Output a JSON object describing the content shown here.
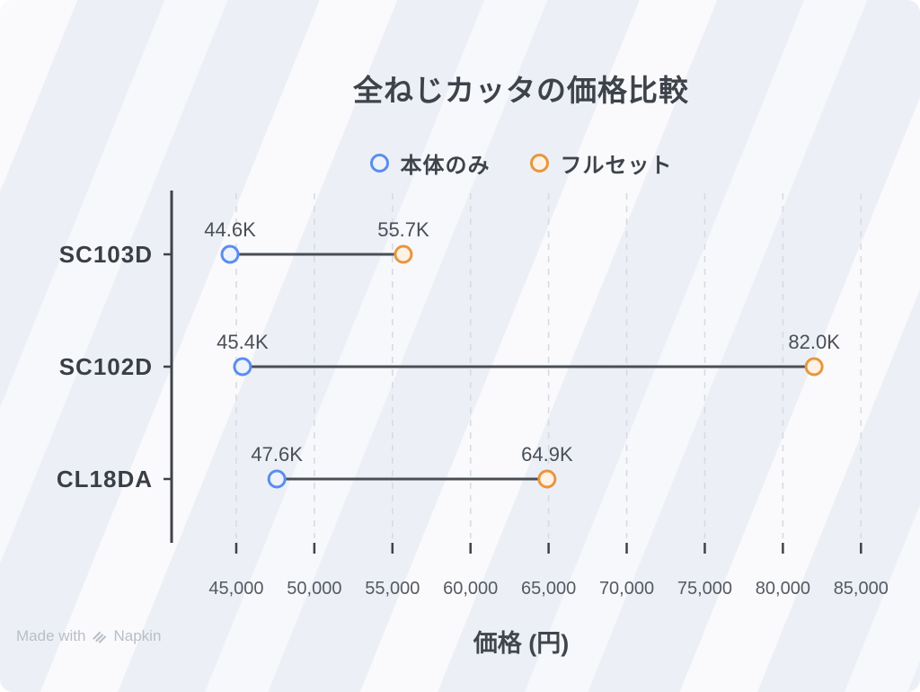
{
  "title": "全ねじカッタの価格比較",
  "xlabel": "価格 (円)",
  "legend": [
    {
      "label": "本体のみ",
      "color": "#5b8def",
      "fill": "#edf2fc"
    },
    {
      "label": "フルセット",
      "color": "#e8963f",
      "fill": "#fdf2e4"
    }
  ],
  "watermark": {
    "prefix": "Made with",
    "brand": "Napkin"
  },
  "colors": {
    "connector": "#4a4e55",
    "axis": "#3f4349",
    "grid": "#d7dbe2",
    "category_text": "#3a3f46",
    "value_text": "#4a4f57",
    "tick_text": "#555a62"
  },
  "chart_data": {
    "type": "dumbbell",
    "title": "全ねじカッタの価格比較",
    "xlabel": "価格 (円)",
    "categories": [
      "SC103D",
      "SC102D",
      "CL18DA"
    ],
    "series": [
      {
        "name": "本体のみ",
        "color": "#5b8def",
        "fill": "#edf2fc",
        "values": [
          44600,
          45400,
          47600
        ],
        "labels": [
          "44.6K",
          "45.4K",
          "47.6K"
        ]
      },
      {
        "name": "フルセット",
        "color": "#e8963f",
        "fill": "#fdf2e4",
        "values": [
          55700,
          82000,
          64900
        ],
        "labels": [
          "55.7K",
          "82.0K",
          "64.9K"
        ]
      }
    ],
    "x_ticks": [
      45000,
      50000,
      55000,
      60000,
      65000,
      70000,
      75000,
      80000,
      85000
    ],
    "x_tick_labels": [
      "45,000",
      "50,000",
      "55,000",
      "60,000",
      "65,000",
      "70,000",
      "75,000",
      "80,000",
      "85,000"
    ],
    "xlim": [
      40860,
      87400
    ],
    "grid": "vertical-dashed",
    "legend_position": "top"
  }
}
